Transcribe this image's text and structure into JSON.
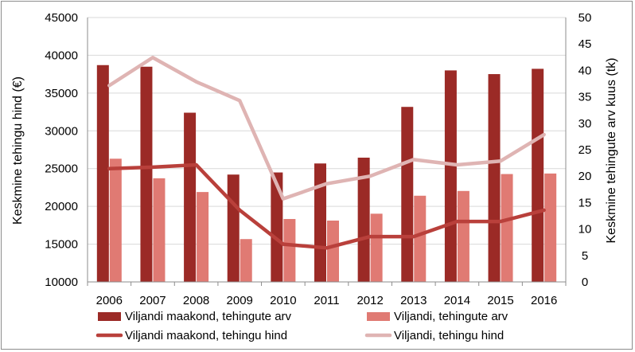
{
  "chart_data": {
    "type": "bar",
    "categories": [
      "2006",
      "2007",
      "2008",
      "2009",
      "2010",
      "2011",
      "2012",
      "2013",
      "2014",
      "2015",
      "2016"
    ],
    "series": [
      {
        "name": "Viljandi maakond, tehingute arv",
        "kind": "bar",
        "axis": "right",
        "color": "#9b2a26",
        "values": [
          41,
          40.7,
          32,
          20.3,
          20.7,
          22.4,
          23.5,
          33.1,
          40,
          39.3,
          40.3
        ]
      },
      {
        "name": "Viljandi, tehingute arv",
        "kind": "bar",
        "axis": "right",
        "color": "#e07a73",
        "values": [
          23.3,
          19.6,
          17,
          8.1,
          11.9,
          11.6,
          12.9,
          16.3,
          17.2,
          20.4,
          20.5
        ]
      },
      {
        "name": "Viljandi maakond, tehingu hind",
        "kind": "line",
        "axis": "left",
        "color": "#b9403b",
        "values": [
          25000,
          25200,
          25500,
          19500,
          15000,
          14500,
          16000,
          16000,
          18000,
          18000,
          19500
        ]
      },
      {
        "name": "Viljandi, tehingu hind",
        "kind": "line",
        "axis": "left",
        "color": "#dfb4b3",
        "values": [
          36000,
          39700,
          36500,
          34000,
          21000,
          23000,
          24000,
          26200,
          25500,
          26000,
          29500
        ]
      }
    ],
    "y_left": {
      "label": "Keskmine tehingu hind (€)",
      "range": [
        10000,
        45000
      ],
      "ticks": [
        "10000",
        "15000",
        "20000",
        "25000",
        "30000",
        "35000",
        "40000",
        "45000"
      ]
    },
    "y_right": {
      "label": "Keskmine tehingute arv kuus (tk)",
      "range": [
        0,
        50
      ],
      "ticks": [
        "0",
        "5",
        "10",
        "15",
        "20",
        "25",
        "30",
        "35",
        "40",
        "45",
        "50"
      ]
    },
    "grid": true,
    "legend_position": "bottom"
  }
}
